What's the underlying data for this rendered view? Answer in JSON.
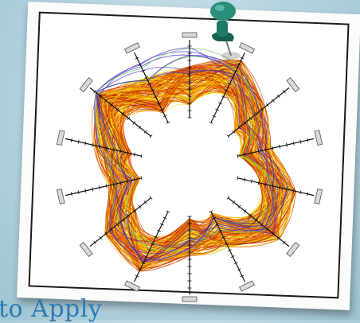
{
  "caption": "to Apply",
  "pin_icon": "pushpin-icon",
  "colors": {
    "pin": "#1f7a67",
    "caption": "#2c7bb0",
    "axis": "#111111",
    "handle_fill": "#d9d9d9",
    "line_palette": [
      "#b21c00",
      "#d43a00",
      "#e85d00",
      "#f28a10",
      "#f6b700",
      "#f2e000"
    ],
    "outlier_palette": [
      "#3c2bb5",
      "#5a3bd0",
      "#69c463"
    ]
  },
  "chart_data": {
    "type": "radial-parallel-coordinates",
    "title": "",
    "axes_count": 14,
    "value_range": [
      0,
      1
    ],
    "line_count": 150,
    "center_radius": 0.32,
    "axis_ticks": 10,
    "note": ""
  }
}
